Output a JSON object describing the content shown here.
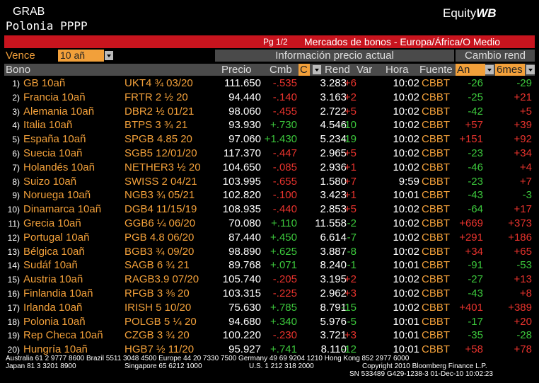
{
  "header": {
    "function": "GRAB",
    "security": "Polonia PPPP",
    "brand": "Equity",
    "brand_bold": "WB",
    "page": "Pg 1/2",
    "title": "Mercados de bonos - Europa/África/O Medio"
  },
  "controls": {
    "vence_label": "Vence",
    "vence_value": "10 añ",
    "group_price": "Información precio actual",
    "group_change": "Cambio rend"
  },
  "columns": {
    "bono": "Bono",
    "precio": "Precio",
    "cmb": "Cmb",
    "c": "C",
    "rend": "Rend",
    "var": "Var",
    "hora": "Hora",
    "fuente": "Fuente",
    "an": "An",
    "seis": "6mes"
  },
  "rows": [
    [
      "1)",
      "GB 10añ",
      "UKT4 ¾ 03/20",
      "111.650",
      "-.535",
      "3.283",
      "+6",
      "10:02",
      "CBBT",
      "-26",
      "-29"
    ],
    [
      "2)",
      "Francia 10añ",
      "FRTR 2 ½ 20",
      "94.440",
      "-.140",
      "3.163",
      "+2",
      "10:02",
      "CBBT",
      "-25",
      "+21"
    ],
    [
      "3)",
      "Alemania 10añ",
      "DBR2 ½ 01/21",
      "98.060",
      "-.455",
      "2.722",
      "+5",
      "10:02",
      "CBBT",
      "-42",
      "+5"
    ],
    [
      "4)",
      "Italia 10añ",
      "BTPS 3 ¾ 21",
      "93.930",
      "+.730",
      "4.546",
      "-10",
      "10:02",
      "CBBT",
      "+57",
      "+39"
    ],
    [
      "5)",
      "España 10añ",
      "SPGB 4.85 20",
      "97.060",
      "+1.430",
      "5.234",
      "-19",
      "10:02",
      "CBBT",
      "+151",
      "+92"
    ],
    [
      "6)",
      "Suecia 10añ",
      "SGB5 12/01/20",
      "117.370",
      "-.447",
      "2.965",
      "+5",
      "10:02",
      "CBBT",
      "-23",
      "+34"
    ],
    [
      "7)",
      "Holandés 10añ",
      "NETHER3 ½ 20",
      "104.650",
      "-.085",
      "2.936",
      "+1",
      "10:02",
      "CBBT",
      "-46",
      "+4"
    ],
    [
      "8)",
      "Suizo 10añ",
      "SWISS 2 04/21",
      "103.995",
      "-.655",
      "1.580",
      "+7",
      "9:59",
      "CBBT",
      "-23",
      "+7"
    ],
    [
      "9)",
      "Noruega 10añ",
      "NGB3 ¾ 05/21",
      "102.820",
      "-.100",
      "3.423",
      "+1",
      "10:01",
      "CBBT",
      "-43",
      "-3"
    ],
    [
      "10)",
      "Dinamarca 10añ",
      "DGB4 11/15/19",
      "108.935",
      "-.440",
      "2.853",
      "+5",
      "10:02",
      "CBBT",
      "-64",
      "+17"
    ],
    [
      "11)",
      "Grecia 10añ",
      "GGB6 ¼ 06/20",
      "70.080",
      "+.110",
      "11.558",
      "-2",
      "10:02",
      "CBBT",
      "+669",
      "+373"
    ],
    [
      "12)",
      "Portugal 10añ",
      "PGB 4.8 06/20",
      "87.440",
      "+.450",
      "6.614",
      "-7",
      "10:02",
      "CBBT",
      "+291",
      "+186"
    ],
    [
      "13)",
      "Bélgica 10añ",
      "BGB3 ¾ 09/20",
      "98.890",
      "+.625",
      "3.887",
      "-8",
      "10:02",
      "CBBT",
      "+34",
      "+65"
    ],
    [
      "14)",
      "Sudáf 10añ",
      "SAGB 6 ¾ 21",
      "89.768",
      "+.071",
      "8.240",
      "-1",
      "10:01",
      "CBBT",
      "-91",
      "-53"
    ],
    [
      "15)",
      "Austria 10añ",
      "RAGB3.9 07/20",
      "105.740",
      "-.205",
      "3.195",
      "+2",
      "10:02",
      "CBBT",
      "-27",
      "+13"
    ],
    [
      "16)",
      "Finlandia 10añ",
      "RFGB 3 ⅜ 20",
      "103.315",
      "-.225",
      "2.962",
      "+3",
      "10:02",
      "CBBT",
      "-43",
      "+8"
    ],
    [
      "17)",
      "Irlanda 10añ",
      "IRISH 5 10/20",
      "75.630",
      "+.785",
      "8.791",
      "-15",
      "10:02",
      "CBBT",
      "+401",
      "+389"
    ],
    [
      "18)",
      "Polonia 10añ",
      "POLGB 5 ¼ 20",
      "94.680",
      "+.340",
      "5.976",
      "-5",
      "10:01",
      "CBBT",
      "-17",
      "+20"
    ],
    [
      "19)",
      "Rep Checa 10añ",
      "CZGB 3 ¾ 20",
      "100.220",
      "-.230",
      "3.721",
      "+3",
      "10:01",
      "CBBT",
      "-35",
      "-28"
    ],
    [
      "20)",
      "Hungría 10añ",
      "HGB7 ½ 11/20",
      "95.927",
      "+.741",
      "8.110",
      "-12",
      "10:01",
      "CBBT",
      "+58",
      "+78"
    ]
  ],
  "footer": {
    "line1": "Australia 61 2 9777 8600 Brazil 5511 3048 4500 Europe 44 20 7330 7500 Germany 49 69 9204 1210 Hong Kong 852 2977 6000",
    "japan": "Japan 81 3 3201 8900",
    "singapore": "Singapore 65 6212 1000",
    "us": "U.S. 1 212 318 2000",
    "copyright": "Copyright 2010 Bloomberg Finance L.P.",
    "sn": "SN 533489 G429-1238-3 01-Dec-10 10:02:23"
  }
}
